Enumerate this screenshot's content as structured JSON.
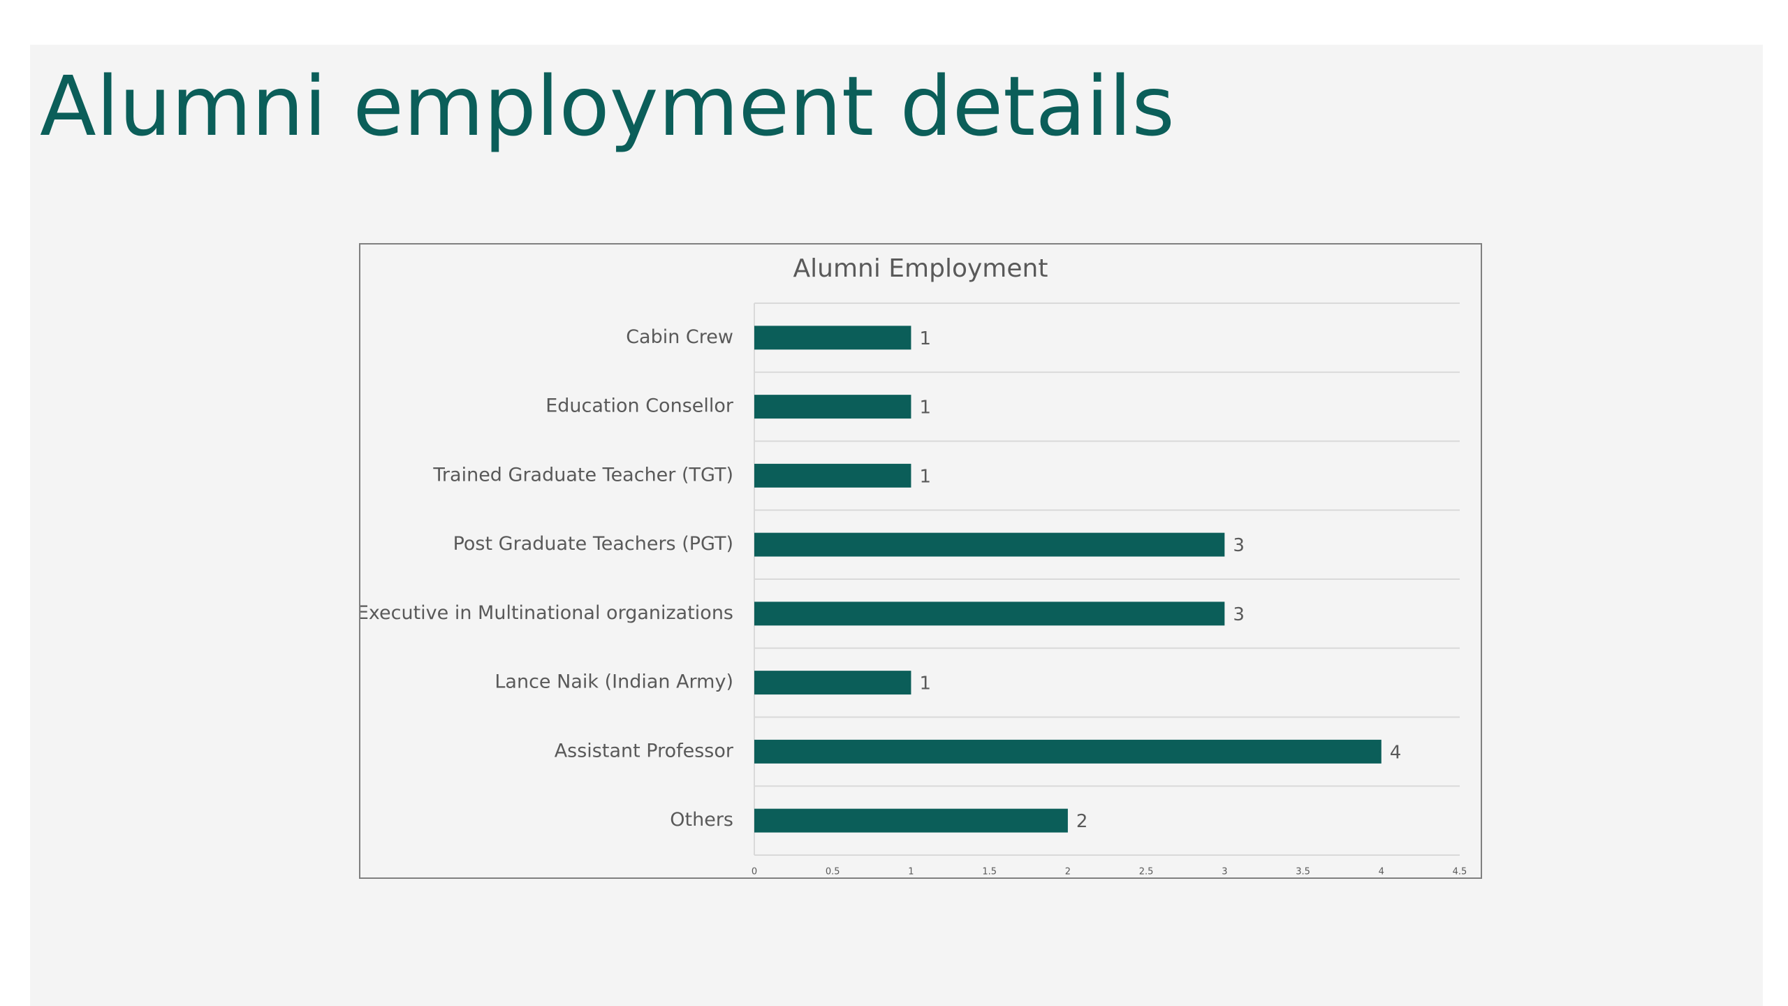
{
  "slide": {
    "title": "Alumni employment details"
  },
  "colors": {
    "title": "#0b5e59",
    "bar": "#0b5e59",
    "background": "#f4f4f4",
    "text": "#595959",
    "gridline": "#d9d9d9"
  },
  "chart_data": {
    "type": "bar",
    "orientation": "horizontal",
    "title": "Alumni Employment",
    "categories": [
      "Cabin Crew",
      "Education Consellor",
      "Trained Graduate Teacher (TGT)",
      "Post Graduate Teachers (PGT)",
      "Executive in Multinational organizations",
      "Lance Naik (Indian Army)",
      "Assistant Professor",
      "Others"
    ],
    "values": [
      1,
      1,
      1,
      3,
      3,
      1,
      4,
      2
    ],
    "data_labels": true,
    "xlim": [
      0,
      4.5
    ],
    "x_ticks": [
      "0",
      "0.5",
      "1",
      "1.5",
      "2",
      "2.5",
      "3",
      "3.5",
      "4",
      "4.5"
    ],
    "xlabel": "",
    "ylabel": "",
    "grid": true,
    "legend": "none"
  }
}
